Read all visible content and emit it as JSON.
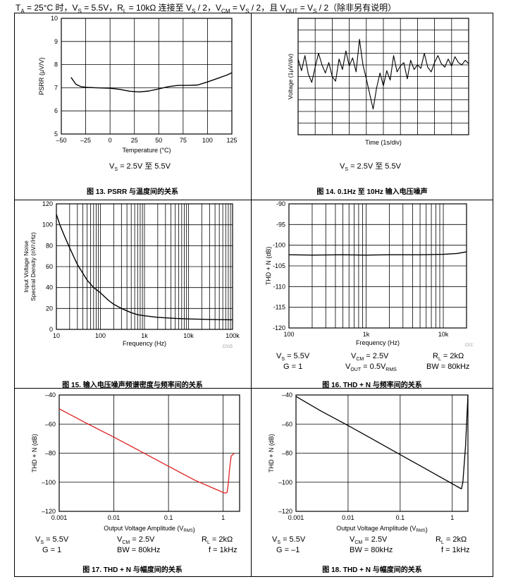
{
  "header": {
    "text": "T_A = 25°C 时，V_S = 5.5V，R_L = 10kΩ 连接至 V_S / 2，V_CM = V_S / 2，且 V_OUT = V_S / 2（除非另有说明）"
  },
  "panels": [
    {
      "caption": "图 13. PSRR 与温度间的关系",
      "conditions": [
        "V_S = 2.5V 至 5.5V"
      ],
      "chart_data": {
        "type": "line",
        "title": "",
        "xlabel": "Temperature (°C)",
        "ylabel": "PSRR (μV/V)",
        "xlim": [
          -50,
          125
        ],
        "ylim": [
          5,
          10
        ],
        "xticks": [
          "–50",
          "–25",
          "0",
          "25",
          "50",
          "75",
          "100",
          "125"
        ],
        "yticks": [
          "5",
          "6",
          "7",
          "8",
          "9",
          "10"
        ],
        "grid": true,
        "color": "#000000",
        "x": [
          -40,
          -35,
          -30,
          -25,
          -15,
          0,
          10,
          20,
          30,
          40,
          50,
          60,
          70,
          80,
          90,
          100,
          110,
          120,
          125
        ],
        "y": [
          7.45,
          7.15,
          7.05,
          7.02,
          7.0,
          6.98,
          6.93,
          6.85,
          6.82,
          6.86,
          6.95,
          7.05,
          7.1,
          7.1,
          7.12,
          7.25,
          7.4,
          7.55,
          7.65
        ]
      }
    },
    {
      "caption": "图 14. 0.1Hz 至 10Hz 输入电压噪声",
      "conditions": [
        "V_S = 2.5V 至 5.5V"
      ],
      "chart_data": {
        "type": "line",
        "title": "",
        "xlabel": "Time (1s/div)",
        "ylabel": "Voltage (1μV/div)",
        "xlim": [
          0,
          10
        ],
        "ylim": [
          -5,
          5
        ],
        "grid": true,
        "color": "#000000",
        "x": [
          0,
          0.2,
          0.4,
          0.6,
          0.8,
          1.0,
          1.2,
          1.4,
          1.6,
          1.8,
          2.0,
          2.2,
          2.4,
          2.6,
          2.8,
          3.0,
          3.2,
          3.4,
          3.6,
          3.8,
          4.0,
          4.2,
          4.4,
          4.6,
          4.8,
          5.0,
          5.2,
          5.4,
          5.6,
          5.8,
          6.0,
          6.2,
          6.4,
          6.6,
          6.8,
          7.0,
          7.2,
          7.4,
          7.6,
          7.8,
          8.0,
          8.2,
          8.4,
          8.6,
          8.8,
          9.0,
          9.2,
          9.4,
          9.6,
          9.8,
          10.0
        ],
        "y": [
          1.5,
          0.5,
          1.8,
          0.2,
          -0.5,
          0.8,
          2.0,
          1.0,
          0.3,
          1.2,
          0.0,
          -0.4,
          1.5,
          0.6,
          2.2,
          0.9,
          1.6,
          0.4,
          3.2,
          1.0,
          -0.2,
          -1.5,
          -2.8,
          -1.0,
          0.3,
          -0.8,
          0.5,
          -0.3,
          1.8,
          0.4,
          0.9,
          1.2,
          -0.2,
          1.4,
          0.6,
          1.0,
          0.7,
          2.0,
          0.8,
          0.4,
          1.2,
          1.8,
          1.1,
          0.8,
          1.5,
          0.9,
          1.7,
          1.2,
          1.0,
          1.4,
          1.1
        ]
      }
    },
    {
      "caption": "图 15. 输入电压噪声频谱密度与频率间的关系",
      "conditions": [],
      "code": "C015",
      "chart_data": {
        "type": "line",
        "title": "",
        "xlabel": "Frequency (Hz)",
        "ylabel": [
          "Input Voltage Noise",
          "Spectral Density (nV/√Hz)"
        ],
        "x_scale": "log",
        "xlim": [
          10,
          100000
        ],
        "ylim": [
          0,
          120
        ],
        "xticks": [
          "10",
          "100",
          "1k",
          "10k",
          "100k"
        ],
        "yticks": [
          "0",
          "20",
          "40",
          "60",
          "80",
          "100",
          "120"
        ],
        "grid": true,
        "color": "#000000",
        "x": [
          10,
          12,
          15,
          20,
          30,
          50,
          70,
          100,
          150,
          200,
          300,
          500,
          700,
          1000,
          2000,
          5000,
          10000,
          30000,
          100000
        ],
        "y": [
          110,
          100,
          90,
          78,
          62,
          47,
          40,
          35,
          28,
          24,
          20,
          16,
          14,
          13,
          11.5,
          10.5,
          10,
          9.5,
          9.2
        ]
      }
    },
    {
      "caption": "图 16. THD + N 与频率间的关系",
      "conditions": [
        "V_S = 5.5V",
        "V_CM = 2.5V",
        "R_L = 2kΩ",
        "G = 1",
        "V_OUT = 0.5V_RMS",
        "BW = 80kHz"
      ],
      "code": "C017",
      "chart_data": {
        "type": "line",
        "title": "",
        "xlabel": "Frequency (Hz)",
        "ylabel": "THD + N (dB)",
        "x_scale": "log",
        "xlim": [
          100,
          20000
        ],
        "ylim": [
          -120,
          -90
        ],
        "xticks": [
          "100",
          "1k",
          "10k"
        ],
        "yticks": [
          "-90",
          "-95",
          "-100",
          "-105",
          "-110",
          "-115",
          "-120"
        ],
        "grid": true,
        "color": "#000000",
        "x": [
          100,
          200,
          500,
          1000,
          2000,
          5000,
          10000,
          15000,
          20000
        ],
        "y": [
          -102.3,
          -102.4,
          -102.3,
          -102.4,
          -102.3,
          -102.3,
          -102.2,
          -102.0,
          -101.6
        ]
      }
    },
    {
      "caption": "图 17. THD + N 与幅度间的关系",
      "conditions": [
        "V_S = 5.5V",
        "V_CM = 2.5V",
        "R_L = 2kΩ",
        "G = 1",
        "BW = 80kHz",
        "f = 1kHz"
      ],
      "chart_data": {
        "type": "line",
        "title": "",
        "xlabel": "Output Voltage Amplitude (V_RMS)",
        "ylabel": "THD + N (dB)",
        "x_scale": "log",
        "xlim": [
          0.001,
          2
        ],
        "ylim": [
          -120,
          -40
        ],
        "xticks": [
          "0.001",
          "0.01",
          "0.1",
          "1"
        ],
        "yticks": [
          "–40",
          "–60",
          "–80",
          "–100",
          "–120"
        ],
        "grid": true,
        "color": "#e02020",
        "x": [
          0.001,
          0.003,
          0.01,
          0.03,
          0.1,
          0.3,
          0.7,
          1.0,
          1.1,
          1.18,
          1.25,
          1.3,
          1.4,
          1.6
        ],
        "y": [
          -49.5,
          -59,
          -69,
          -78.5,
          -89,
          -98.5,
          -104.5,
          -107,
          -107.5,
          -107,
          -100,
          -92,
          -82,
          -80
        ]
      }
    },
    {
      "caption": "图 18. THD + N 与幅度间的关系",
      "conditions": [
        "V_S = 5.5V",
        "V_CM = 2.5V",
        "R_L = 2kΩ",
        "G = –1",
        "BW = 80kHz",
        "f = 1kHz"
      ],
      "chart_data": {
        "type": "line",
        "title": "",
        "xlabel": "Output Voltage Amplitude (V_RMS)",
        "ylabel": "THD + N (dB)",
        "x_scale": "log",
        "xlim": [
          0.001,
          2
        ],
        "ylim": [
          -120,
          -40
        ],
        "xticks": [
          "0.001",
          "0.01",
          "0.1",
          "1"
        ],
        "yticks": [
          "–40",
          "–60",
          "–80",
          "–100",
          "–120"
        ],
        "grid": true,
        "color": "#000000",
        "x": [
          0.001,
          0.003,
          0.01,
          0.03,
          0.1,
          0.3,
          1.0,
          1.4,
          1.5,
          1.6,
          1.8,
          2.0
        ],
        "y": [
          -41,
          -51,
          -61,
          -70.5,
          -81,
          -90.5,
          -101,
          -104,
          -104.5,
          -100,
          -75,
          -40
        ]
      }
    }
  ]
}
